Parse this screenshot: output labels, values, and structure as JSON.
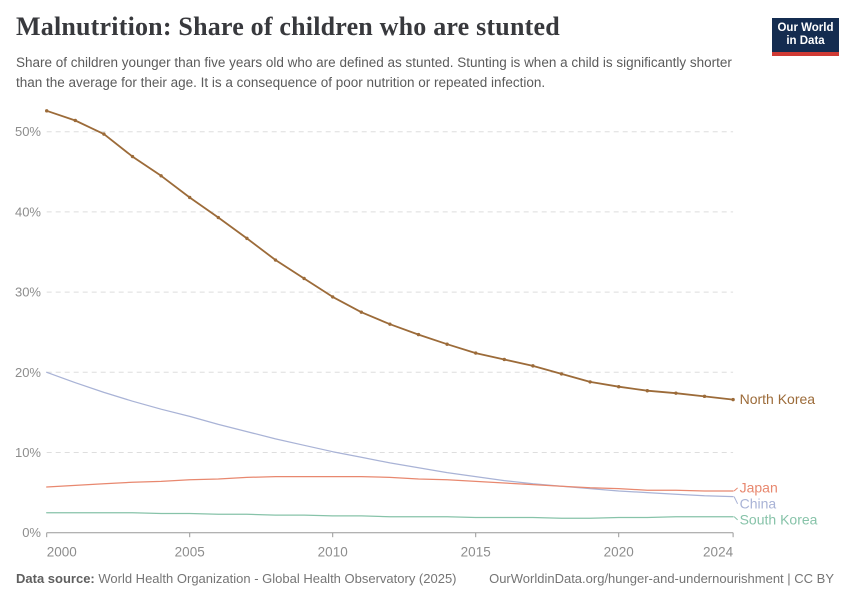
{
  "header": {
    "title": "Malnutrition: Share of children who are stunted",
    "subtitle": "Share of children younger than five years old who are defined as stunted. Stunting is when a child is significantly shorter than the average for their age. It is a consequence of poor nutrition or repeated infection.",
    "logo": {
      "line1": "Our World",
      "line2": "in Data"
    }
  },
  "footer": {
    "datasource_label": "Data source:",
    "datasource_text": " World Health Organization - Global Health Observatory (2025)",
    "credit": "OurWorldinData.org/hunger-and-undernourishment | CC BY"
  },
  "palette": {
    "title_text": "#38393d",
    "subtitle_text": "#5b5b5b",
    "axis_text": "#8d8d8d",
    "grid_line": "#dedede",
    "axis_line": "#999999",
    "footer_text": "#757575",
    "logo_bg": "#142c50",
    "logo_stripe": "#d03a34"
  },
  "chart_data": {
    "type": "line",
    "title": "Malnutrition: Share of children who are stunted",
    "xlabel": "",
    "ylabel": "",
    "x": [
      2000,
      2001,
      2002,
      2003,
      2004,
      2005,
      2006,
      2007,
      2008,
      2009,
      2010,
      2011,
      2012,
      2013,
      2014,
      2015,
      2016,
      2017,
      2018,
      2019,
      2020,
      2021,
      2022,
      2023,
      2024
    ],
    "series": [
      {
        "name": "North Korea",
        "color": "#9c6b39",
        "markers": true,
        "values": [
          52.6,
          51.4,
          49.7,
          46.9,
          44.5,
          41.8,
          39.3,
          36.7,
          34.0,
          31.7,
          29.4,
          27.5,
          26.0,
          24.7,
          23.5,
          22.4,
          21.6,
          20.8,
          19.8,
          18.8,
          18.2,
          17.7,
          17.4,
          17.0,
          16.6
        ]
      },
      {
        "name": "Japan",
        "color": "#e8886f",
        "markers": false,
        "values": [
          5.7,
          5.9,
          6.1,
          6.3,
          6.4,
          6.6,
          6.7,
          6.9,
          7.0,
          7.0,
          7.0,
          7.0,
          6.9,
          6.7,
          6.6,
          6.4,
          6.2,
          6.0,
          5.8,
          5.6,
          5.5,
          5.3,
          5.3,
          5.2,
          5.2
        ]
      },
      {
        "name": "China",
        "color": "#a9b3d6",
        "markers": false,
        "values": [
          20.0,
          18.7,
          17.5,
          16.4,
          15.4,
          14.5,
          13.5,
          12.6,
          11.7,
          10.9,
          10.1,
          9.4,
          8.7,
          8.1,
          7.5,
          7.0,
          6.5,
          6.1,
          5.8,
          5.5,
          5.2,
          5.0,
          4.8,
          4.6,
          4.5
        ]
      },
      {
        "name": "South Korea",
        "color": "#87c3a9",
        "markers": false,
        "values": [
          2.5,
          2.5,
          2.5,
          2.5,
          2.4,
          2.4,
          2.3,
          2.3,
          2.2,
          2.2,
          2.1,
          2.1,
          2.0,
          2.0,
          2.0,
          1.9,
          1.9,
          1.9,
          1.8,
          1.8,
          1.9,
          1.9,
          2.0,
          2.0,
          2.0
        ]
      }
    ],
    "xticks": [
      2000,
      2005,
      2010,
      2015,
      2020,
      2024
    ],
    "yticks": [
      0,
      10,
      20,
      30,
      40,
      50
    ],
    "ytick_suffix": "%",
    "xlim": [
      2000,
      2024
    ],
    "ylim": [
      0,
      55
    ],
    "grid": "horizontal-dashed",
    "legend_position": "right-end-of-line-labels"
  }
}
